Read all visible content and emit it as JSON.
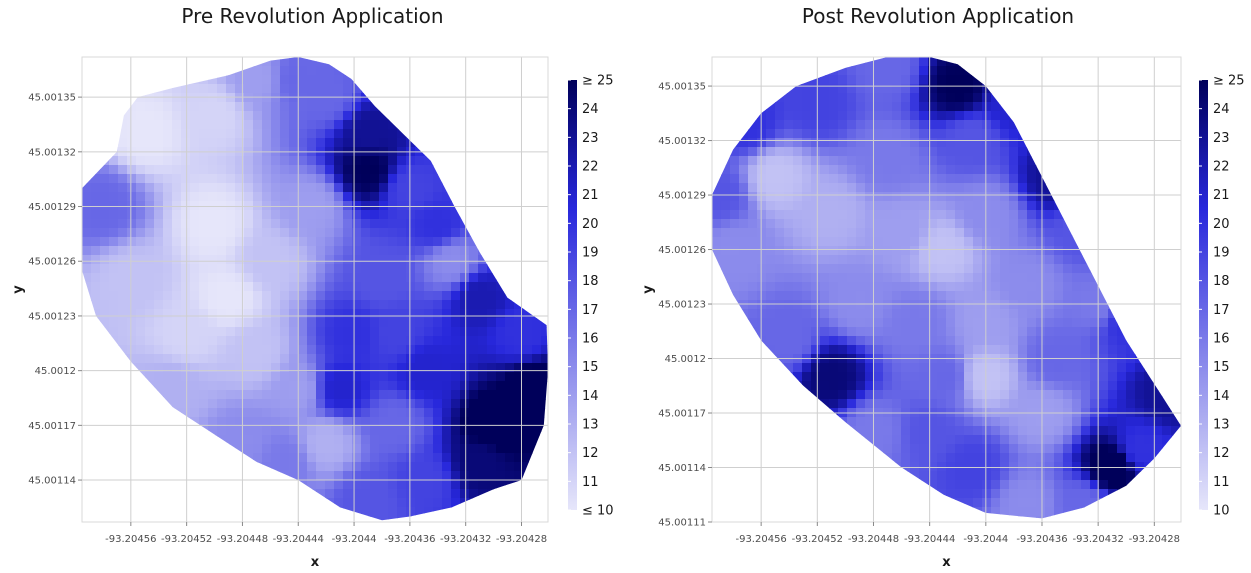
{
  "chart_data": [
    {
      "type": "heatmap",
      "title": "Pre Revolution Application",
      "xlabel": "x",
      "ylabel": "y",
      "x_ticks": [
        -93.20456,
        -93.20452,
        -93.20448,
        -93.20444,
        -93.2044,
        -93.20436,
        -93.20432,
        -93.20428
      ],
      "x_tick_labels": [
        "-93.20456",
        "-93.20452",
        "-93.20448",
        "-93.20444",
        "-93.2044",
        "-93.20436",
        "-93.20432",
        "-93.20428"
      ],
      "y_ticks": [
        45.00114,
        45.00117,
        45.0012,
        45.00123,
        45.00126,
        45.00129,
        45.00132,
        45.00135
      ],
      "y_tick_labels": [
        "45.00114",
        "45.00117",
        "45.0012",
        "45.00123",
        "45.00126",
        "45.00129",
        "45.00132",
        "45.00135"
      ],
      "xlim": [
        -93.204595,
        -93.204261
      ],
      "ylim": [
        45.001117,
        45.001372
      ],
      "legend": {
        "position": "right",
        "labels": [
          "≥ 25",
          "24",
          "23",
          "22",
          "21",
          "20",
          "19",
          "18",
          "17",
          "16",
          "15",
          "14",
          "13",
          "12",
          "11",
          "≤ 10"
        ],
        "min": 10,
        "max": 25,
        "color_low": "#e6e6fa",
        "color_high": "#00005a"
      },
      "boundary": [
        [
          -93.204595,
          45.0013
        ],
        [
          -93.20457,
          45.00132
        ],
        [
          -93.204565,
          45.00134
        ],
        [
          -93.204555,
          45.00135
        ],
        [
          -93.20453,
          45.001355
        ],
        [
          -93.20449,
          45.001362
        ],
        [
          -93.20446,
          45.00137
        ],
        [
          -93.20444,
          45.001372
        ],
        [
          -93.204418,
          45.001368
        ],
        [
          -93.204402,
          45.00136
        ],
        [
          -93.204385,
          45.001345
        ],
        [
          -93.204365,
          45.00133
        ],
        [
          -93.204345,
          45.001315
        ],
        [
          -93.204328,
          45.00129
        ],
        [
          -93.20431,
          45.001265
        ],
        [
          -93.20429,
          45.00124
        ],
        [
          -93.204262,
          45.001225
        ],
        [
          -93.204261,
          45.0012
        ],
        [
          -93.204264,
          45.00117
        ],
        [
          -93.20428,
          45.00114
        ],
        [
          -93.2043,
          45.001135
        ],
        [
          -93.20433,
          45.001125
        ],
        [
          -93.20436,
          45.00112
        ],
        [
          -93.20438,
          45.001118
        ],
        [
          -93.20441,
          45.001125
        ],
        [
          -93.20444,
          45.00114
        ],
        [
          -93.20447,
          45.00115
        ],
        [
          -93.2045,
          45.001165
        ],
        [
          -93.20453,
          45.00118
        ],
        [
          -93.20456,
          45.001205
        ],
        [
          -93.204585,
          45.00123
        ],
        [
          -93.204595,
          45.001255
        ]
      ],
      "points": [
        {
          "x": -93.20455,
          "y": 45.00133,
          "z": 10
        },
        {
          "x": -93.2045,
          "y": 45.00134,
          "z": 11
        },
        {
          "x": -93.20447,
          "y": 45.00136,
          "z": 14
        },
        {
          "x": -93.20444,
          "y": 45.00136,
          "z": 17
        },
        {
          "x": -93.20442,
          "y": 45.00135,
          "z": 17
        },
        {
          "x": -93.20439,
          "y": 45.00133,
          "z": 23
        },
        {
          "x": -93.20439,
          "y": 45.00131,
          "z": 25
        },
        {
          "x": -93.20436,
          "y": 45.0013,
          "z": 19
        },
        {
          "x": -93.20434,
          "y": 45.00128,
          "z": 20
        },
        {
          "x": -93.20431,
          "y": 45.00124,
          "z": 22
        },
        {
          "x": -93.20428,
          "y": 45.00122,
          "z": 20
        },
        {
          "x": -93.20427,
          "y": 45.00119,
          "z": 26
        },
        {
          "x": -93.2043,
          "y": 45.00117,
          "z": 26
        },
        {
          "x": -93.20431,
          "y": 45.00115,
          "z": 24
        },
        {
          "x": -93.20435,
          "y": 45.00114,
          "z": 19
        },
        {
          "x": -93.20439,
          "y": 45.00113,
          "z": 18
        },
        {
          "x": -93.20442,
          "y": 45.00116,
          "z": 13
        },
        {
          "x": -93.20441,
          "y": 45.00119,
          "z": 21
        },
        {
          "x": -93.2044,
          "y": 45.00122,
          "z": 20
        },
        {
          "x": -93.20437,
          "y": 45.00122,
          "z": 19
        },
        {
          "x": -93.20435,
          "y": 45.0012,
          "z": 21
        },
        {
          "x": -93.20433,
          "y": 45.00126,
          "z": 15
        },
        {
          "x": -93.20443,
          "y": 45.00129,
          "z": 14
        },
        {
          "x": -93.20446,
          "y": 45.00126,
          "z": 12
        },
        {
          "x": -93.2045,
          "y": 45.00128,
          "z": 10
        },
        {
          "x": -93.20449,
          "y": 45.00124,
          "z": 10
        },
        {
          "x": -93.20447,
          "y": 45.00121,
          "z": 12
        },
        {
          "x": -93.20444,
          "y": 45.00119,
          "z": 14
        },
        {
          "x": -93.20452,
          "y": 45.00122,
          "z": 11
        },
        {
          "x": -93.20456,
          "y": 45.00125,
          "z": 12
        },
        {
          "x": -93.20458,
          "y": 45.00129,
          "z": 17
        },
        {
          "x": -93.20453,
          "y": 45.00119,
          "z": 13
        },
        {
          "x": -93.20448,
          "y": 45.00116,
          "z": 15
        },
        {
          "x": -93.20445,
          "y": 45.00115,
          "z": 16
        },
        {
          "x": -93.20437,
          "y": 45.00117,
          "z": 17
        },
        {
          "x": -93.20438,
          "y": 45.00125,
          "z": 18
        }
      ]
    },
    {
      "type": "heatmap",
      "title": "Post Revolution Application",
      "xlabel": "x",
      "ylabel": "y",
      "x_ticks": [
        -93.20456,
        -93.20452,
        -93.20448,
        -93.20444,
        -93.2044,
        -93.20436,
        -93.20432,
        -93.20428
      ],
      "x_tick_labels": [
        "-93.20456",
        "-93.20452",
        "-93.20448",
        "-93.20444",
        "-93.2044",
        "-93.20436",
        "-93.20432",
        "-93.20428"
      ],
      "y_ticks": [
        45.00111,
        45.00114,
        45.00117,
        45.0012,
        45.00123,
        45.00126,
        45.00129,
        45.00132,
        45.00135
      ],
      "y_tick_labels": [
        "45.00111",
        "45.00114",
        "45.00117",
        "45.0012",
        "45.00123",
        "45.00126",
        "45.00129",
        "45.00132",
        "45.00135"
      ],
      "xlim": [
        -93.204595,
        -93.204261
      ],
      "ylim": [
        45.00111,
        45.001366
      ],
      "legend": {
        "position": "right",
        "labels": [
          "≥ 25",
          "24",
          "23",
          "22",
          "21",
          "20",
          "19",
          "18",
          "17",
          "16",
          "15",
          "14",
          "13",
          "12",
          "11",
          "10"
        ],
        "min": 10,
        "max": 25,
        "color_low": "#e6e6fa",
        "color_high": "#00005a"
      },
      "boundary": [
        [
          -93.204595,
          45.00129
        ],
        [
          -93.20458,
          45.001315
        ],
        [
          -93.20456,
          45.001335
        ],
        [
          -93.204535,
          45.00135
        ],
        [
          -93.2045,
          45.00136
        ],
        [
          -93.20447,
          45.001366
        ],
        [
          -93.20444,
          45.001366
        ],
        [
          -93.20442,
          45.001362
        ],
        [
          -93.2044,
          45.00135
        ],
        [
          -93.20438,
          45.00133
        ],
        [
          -93.20436,
          45.0013
        ],
        [
          -93.20434,
          45.00127
        ],
        [
          -93.20432,
          45.00124
        ],
        [
          -93.2043,
          45.00121
        ],
        [
          -93.204275,
          45.00118
        ],
        [
          -93.204261,
          45.001163
        ],
        [
          -93.20428,
          45.001145
        ],
        [
          -93.2043,
          45.00113
        ],
        [
          -93.20433,
          45.001118
        ],
        [
          -93.20436,
          45.001112
        ],
        [
          -93.2044,
          45.001115
        ],
        [
          -93.20443,
          45.001125
        ],
        [
          -93.20446,
          45.00114
        ],
        [
          -93.2045,
          45.001165
        ],
        [
          -93.20453,
          45.001185
        ],
        [
          -93.20456,
          45.00121
        ],
        [
          -93.20458,
          45.001235
        ],
        [
          -93.204595,
          45.00126
        ]
      ],
      "points": [
        {
          "x": -93.20457,
          "y": 45.00133,
          "z": 20
        },
        {
          "x": -93.20452,
          "y": 45.00134,
          "z": 19
        },
        {
          "x": -93.20447,
          "y": 45.00136,
          "z": 17
        },
        {
          "x": -93.20442,
          "y": 45.00135,
          "z": 25
        },
        {
          "x": -93.20441,
          "y": 45.00132,
          "z": 18
        },
        {
          "x": -93.20438,
          "y": 45.00134,
          "z": 21
        },
        {
          "x": -93.20435,
          "y": 45.0013,
          "z": 23
        },
        {
          "x": -93.20433,
          "y": 45.00127,
          "z": 18
        },
        {
          "x": -93.2043,
          "y": 45.00122,
          "z": 20
        },
        {
          "x": -93.20427,
          "y": 45.00118,
          "z": 23
        },
        {
          "x": -93.20429,
          "y": 45.00115,
          "z": 20
        },
        {
          "x": -93.20431,
          "y": 45.00114,
          "z": 26
        },
        {
          "x": -93.20433,
          "y": 45.00112,
          "z": 17
        },
        {
          "x": -93.20437,
          "y": 45.00112,
          "z": 15
        },
        {
          "x": -93.20441,
          "y": 45.00114,
          "z": 19
        },
        {
          "x": -93.20444,
          "y": 45.00116,
          "z": 18
        },
        {
          "x": -93.20448,
          "y": 45.00116,
          "z": 16
        },
        {
          "x": -93.20451,
          "y": 45.00119,
          "z": 24
        },
        {
          "x": -93.20454,
          "y": 45.00121,
          "z": 17
        },
        {
          "x": -93.20458,
          "y": 45.00126,
          "z": 15
        },
        {
          "x": -93.20459,
          "y": 45.00129,
          "z": 18
        },
        {
          "x": -93.20455,
          "y": 45.0013,
          "z": 12
        },
        {
          "x": -93.20451,
          "y": 45.00128,
          "z": 13
        },
        {
          "x": -93.20446,
          "y": 45.00127,
          "z": 14
        },
        {
          "x": -93.20443,
          "y": 45.00126,
          "z": 12
        },
        {
          "x": -93.2044,
          "y": 45.00128,
          "z": 15
        },
        {
          "x": -93.20445,
          "y": 45.00122,
          "z": 16
        },
        {
          "x": -93.20449,
          "y": 45.00123,
          "z": 15
        },
        {
          "x": -93.2044,
          "y": 45.00122,
          "z": 14
        },
        {
          "x": -93.20437,
          "y": 45.00124,
          "z": 15
        },
        {
          "x": -93.20435,
          "y": 45.0012,
          "z": 17
        },
        {
          "x": -93.20436,
          "y": 45.00117,
          "z": 14
        },
        {
          "x": -93.2044,
          "y": 45.00119,
          "z": 12
        },
        {
          "x": -93.20443,
          "y": 45.00119,
          "z": 17
        },
        {
          "x": -93.20432,
          "y": 45.00123,
          "z": 16
        },
        {
          "x": -93.20447,
          "y": 45.00131,
          "z": 16
        }
      ]
    }
  ]
}
